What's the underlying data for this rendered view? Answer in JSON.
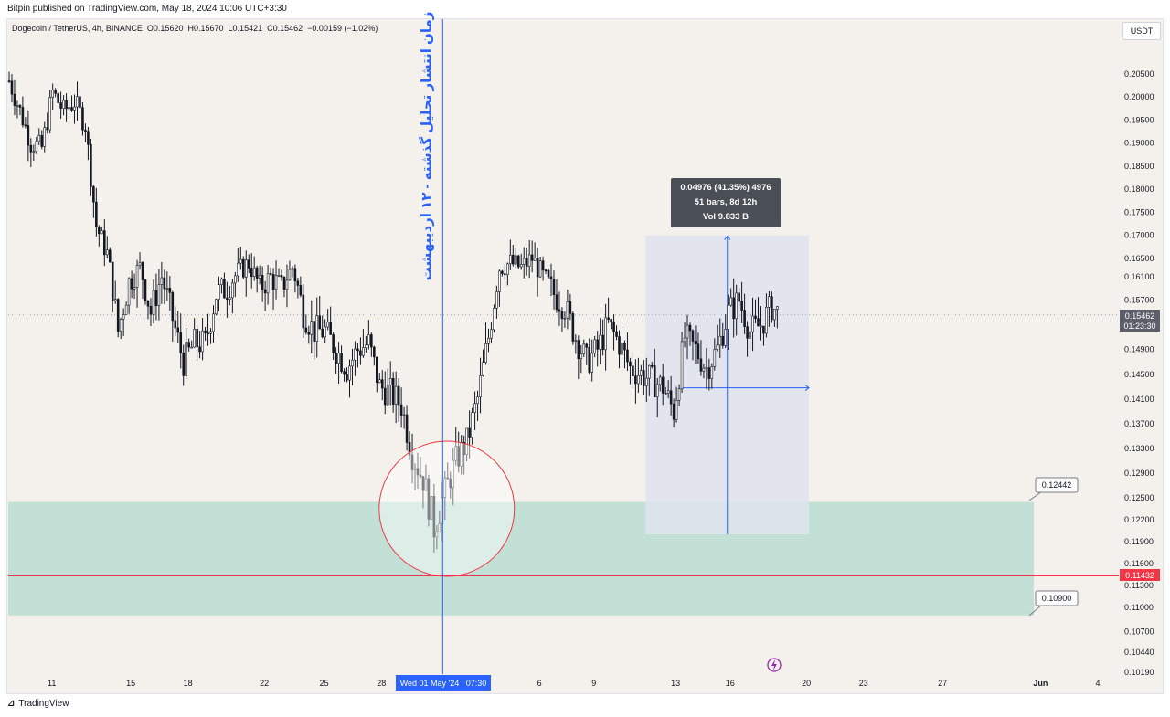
{
  "header": {
    "published": "Bitpin published on TradingView.com, May 18, 2024 10:06 UTC+3:30"
  },
  "legend": {
    "symbol": "Dogecoin / TetherUS, 4h, BINANCE",
    "open": "O0.15620",
    "high": "H0.15670",
    "low": "L0.15421",
    "close": "C0.15462",
    "change": "−0.00159 (−1.02%)"
  },
  "currency_button": "USDT",
  "annotation_vertical": "زمان انتشار تحلیل گذشته - ۱۲ اردیبهشت",
  "measure_box": {
    "line1": "0.04976 (41.35%) 4976",
    "line2": "51 bars, 8d 12h",
    "line3": "Vol 9.833 B"
  },
  "zone_labels": {
    "top": "0.12442",
    "bottom": "0.10900"
  },
  "price_labels": {
    "current": "0.15462",
    "countdown": "01:23:30",
    "red_line": "0.11432"
  },
  "crosshair_date": "Wed 01 May '24   07:30",
  "footer": {
    "brand": "TradingView"
  },
  "colors": {
    "background": "#f4f1ec",
    "zone": "#c2e0d6",
    "measure": "#dfe3ef",
    "crosshair": "#2962ff",
    "red_line": "#f23645",
    "label_dark": "#4a4e57"
  },
  "chart_data": {
    "type": "candlestick",
    "y_axis_ticks": [
      "0.20500",
      "0.20000",
      "0.19500",
      "0.19000",
      "0.18500",
      "0.18000",
      "0.17500",
      "0.17000",
      "0.16500",
      "0.16100",
      "0.15700",
      "0.14900",
      "0.14500",
      "0.14100",
      "0.13700",
      "0.13300",
      "0.12900",
      "0.12500",
      "0.12200",
      "0.11900",
      "0.11600",
      "0.11300",
      "0.11000",
      "0.10700",
      "0.10440",
      "0.10190"
    ],
    "x_axis_ticks": [
      "11",
      "15",
      "18",
      "22",
      "25",
      "28",
      "6",
      "9",
      "13",
      "16",
      "20",
      "23",
      "27",
      "Jun",
      "4"
    ],
    "demand_zone": [
      0.109,
      0.12442
    ],
    "red_line": 0.11432,
    "current_price": 0.15462,
    "measure_range": [
      0.12,
      0.17
    ],
    "waypoints": [
      [
        0,
        0.2035
      ],
      [
        4,
        0.197
      ],
      [
        8,
        0.19
      ],
      [
        12,
        0.189
      ],
      [
        16,
        0.201
      ],
      [
        20,
        0.197
      ],
      [
        24,
        0.199
      ],
      [
        28,
        0.194
      ],
      [
        32,
        0.172
      ],
      [
        36,
        0.166
      ],
      [
        40,
        0.152
      ],
      [
        44,
        0.16
      ],
      [
        48,
        0.163
      ],
      [
        52,
        0.155
      ],
      [
        56,
        0.161
      ],
      [
        60,
        0.154
      ],
      [
        64,
        0.147
      ],
      [
        68,
        0.15
      ],
      [
        72,
        0.15
      ],
      [
        76,
        0.158
      ],
      [
        80,
        0.159
      ],
      [
        84,
        0.162
      ],
      [
        88,
        0.164
      ],
      [
        92,
        0.159
      ],
      [
        96,
        0.161
      ],
      [
        100,
        0.159
      ],
      [
        104,
        0.163
      ],
      [
        108,
        0.155
      ],
      [
        112,
        0.152
      ],
      [
        116,
        0.152
      ],
      [
        120,
        0.149
      ],
      [
        124,
        0.146
      ],
      [
        128,
        0.149
      ],
      [
        132,
        0.15
      ],
      [
        136,
        0.143
      ],
      [
        140,
        0.142
      ],
      [
        144,
        0.14
      ],
      [
        148,
        0.132
      ],
      [
        152,
        0.128
      ],
      [
        156,
        0.121
      ],
      [
        160,
        0.126
      ],
      [
        164,
        0.131
      ],
      [
        168,
        0.134
      ],
      [
        172,
        0.141
      ],
      [
        176,
        0.151
      ],
      [
        180,
        0.163
      ],
      [
        184,
        0.164
      ],
      [
        188,
        0.163
      ],
      [
        192,
        0.165
      ],
      [
        196,
        0.161
      ],
      [
        200,
        0.158
      ],
      [
        204,
        0.156
      ],
      [
        208,
        0.151
      ],
      [
        212,
        0.147
      ],
      [
        216,
        0.149
      ],
      [
        220,
        0.153
      ],
      [
        224,
        0.15
      ],
      [
        228,
        0.146
      ],
      [
        232,
        0.145
      ],
      [
        236,
        0.144
      ],
      [
        240,
        0.143
      ],
      [
        244,
        0.139
      ],
      [
        248,
        0.151
      ],
      [
        252,
        0.149
      ],
      [
        256,
        0.146
      ],
      [
        260,
        0.149
      ],
      [
        264,
        0.155
      ],
      [
        268,
        0.157
      ],
      [
        272,
        0.152
      ],
      [
        276,
        0.153
      ],
      [
        280,
        0.156
      ],
      [
        282,
        0.155
      ]
    ]
  }
}
